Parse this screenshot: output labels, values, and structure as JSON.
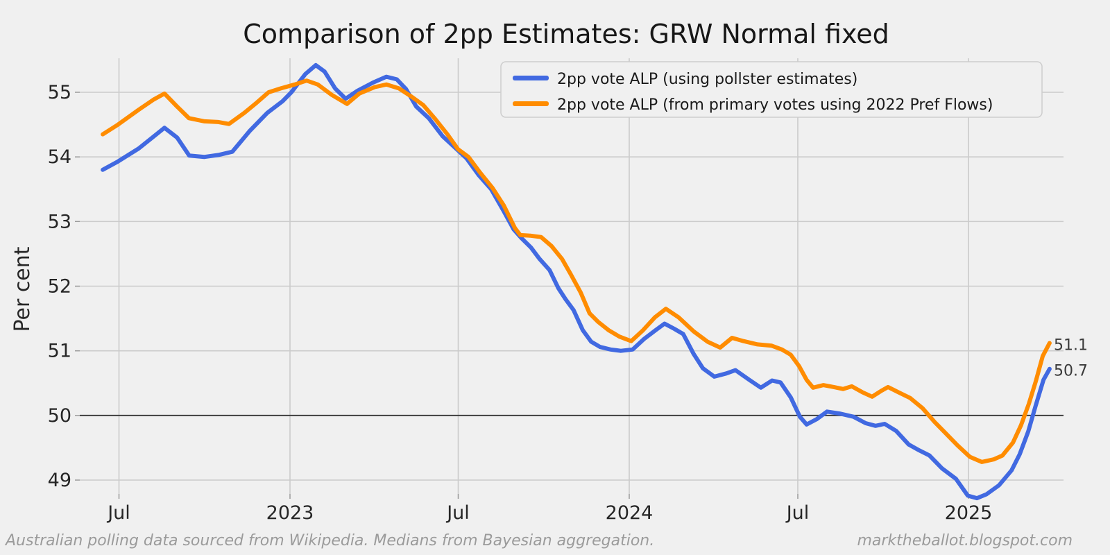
{
  "title": "Comparison of 2pp Estimates: GRW Normal fixed",
  "y_axis": {
    "label": "Per cent",
    "ticks": [
      49,
      50,
      51,
      52,
      53,
      54,
      55
    ]
  },
  "x_axis": {
    "ticks": [
      {
        "label": "Jul",
        "year": 2022.496
      },
      {
        "label": "2023",
        "year": 2023.0
      },
      {
        "label": "Jul",
        "year": 2023.496
      },
      {
        "label": "2024",
        "year": 2024.0
      },
      {
        "label": "Jul",
        "year": 2024.497
      },
      {
        "label": "2025",
        "year": 2025.0
      }
    ]
  },
  "legend": {
    "items": [
      {
        "label": "2pp vote ALP (using pollster estimates)",
        "color": "#4169e1"
      },
      {
        "label": "2pp vote ALP (from primary votes using 2022 Pref Flows)",
        "color": "#ff8c00"
      }
    ]
  },
  "annotations": [
    {
      "text": "51.1",
      "value": 51.1
    },
    {
      "text": "50.7",
      "value": 50.7
    }
  ],
  "footer": {
    "left": "Australian polling data sourced from Wikipedia. Medians from Bayesian aggregation.",
    "right": "marktheballot.blogspot.com"
  },
  "colors": {
    "background": "#f0f0f0",
    "gridline": "#cbcbcb",
    "reference_line": "#3f3f3f",
    "blue_series": "#4169e1",
    "orange_series": "#ff8c00"
  },
  "chart_data": {
    "type": "line",
    "title": "Comparison of 2pp Estimates: GRW Normal fixed",
    "xlabel": "",
    "ylabel": "Per cent",
    "xlim": [
      2022.38,
      2025.28
    ],
    "ylim": [
      48.79,
      55.53
    ],
    "grid": true,
    "legend_position": "upper right",
    "reference_line": 50,
    "end_labels": [
      51.1,
      50.7
    ],
    "series": [
      {
        "name": "2pp vote ALP (using pollster estimates)",
        "color": "#4169e1",
        "points": [
          [
            2022.448,
            53.8
          ],
          [
            2022.493,
            53.93
          ],
          [
            2022.554,
            54.13
          ],
          [
            2022.599,
            54.32
          ],
          [
            2022.63,
            54.45
          ],
          [
            2022.667,
            54.3
          ],
          [
            2022.703,
            54.02
          ],
          [
            2022.748,
            54.0
          ],
          [
            2022.789,
            54.03
          ],
          [
            2022.83,
            54.08
          ],
          [
            2022.881,
            54.4
          ],
          [
            2022.933,
            54.68
          ],
          [
            2022.978,
            54.86
          ],
          [
            2023.004,
            55.0
          ],
          [
            2023.045,
            55.28
          ],
          [
            2023.076,
            55.42
          ],
          [
            2023.102,
            55.32
          ],
          [
            2023.133,
            55.06
          ],
          [
            2023.164,
            54.9
          ],
          [
            2023.198,
            55.02
          ],
          [
            2023.245,
            55.15
          ],
          [
            2023.284,
            55.24
          ],
          [
            2023.315,
            55.2
          ],
          [
            2023.342,
            55.05
          ],
          [
            2023.372,
            54.78
          ],
          [
            2023.409,
            54.6
          ],
          [
            2023.45,
            54.32
          ],
          [
            2023.485,
            54.15
          ],
          [
            2023.52,
            53.98
          ],
          [
            2023.556,
            53.72
          ],
          [
            2023.593,
            53.5
          ],
          [
            2023.628,
            53.18
          ],
          [
            2023.659,
            52.88
          ],
          [
            2023.683,
            52.74
          ],
          [
            2023.71,
            52.6
          ],
          [
            2023.736,
            52.42
          ],
          [
            2023.765,
            52.25
          ],
          [
            2023.791,
            51.97
          ],
          [
            2023.812,
            51.8
          ],
          [
            2023.836,
            51.63
          ],
          [
            2023.863,
            51.32
          ],
          [
            2023.888,
            51.14
          ],
          [
            2023.914,
            51.06
          ],
          [
            2023.945,
            51.02
          ],
          [
            2023.975,
            51.0
          ],
          [
            2024.01,
            51.02
          ],
          [
            2024.043,
            51.18
          ],
          [
            2024.078,
            51.32
          ],
          [
            2024.104,
            51.42
          ],
          [
            2024.133,
            51.34
          ],
          [
            2024.159,
            51.26
          ],
          [
            2024.19,
            50.95
          ],
          [
            2024.217,
            50.73
          ],
          [
            2024.251,
            50.6
          ],
          [
            2024.286,
            50.65
          ],
          [
            2024.313,
            50.7
          ],
          [
            2024.354,
            50.55
          ],
          [
            2024.388,
            50.43
          ],
          [
            2024.421,
            50.54
          ],
          [
            2024.446,
            50.51
          ],
          [
            2024.476,
            50.28
          ],
          [
            2024.503,
            49.98
          ],
          [
            2024.523,
            49.86
          ],
          [
            2024.552,
            49.94
          ],
          [
            2024.583,
            50.06
          ],
          [
            2024.62,
            50.03
          ],
          [
            2024.661,
            49.98
          ],
          [
            2024.697,
            49.88
          ],
          [
            2024.726,
            49.84
          ],
          [
            2024.753,
            49.87
          ],
          [
            2024.787,
            49.76
          ],
          [
            2024.824,
            49.55
          ],
          [
            2024.855,
            49.46
          ],
          [
            2024.885,
            49.38
          ],
          [
            2024.922,
            49.18
          ],
          [
            2024.963,
            49.02
          ],
          [
            2024.998,
            48.76
          ],
          [
            2025.025,
            48.72
          ],
          [
            2025.053,
            48.78
          ],
          [
            2025.09,
            48.92
          ],
          [
            2025.127,
            49.15
          ],
          [
            2025.151,
            49.4
          ],
          [
            2025.176,
            49.75
          ],
          [
            2025.198,
            50.15
          ],
          [
            2025.221,
            50.55
          ],
          [
            2025.239,
            50.72
          ]
        ]
      },
      {
        "name": "2pp vote ALP (from primary votes using 2022 Pref Flows)",
        "color": "#ff8c00",
        "points": [
          [
            2022.448,
            54.35
          ],
          [
            2022.493,
            54.5
          ],
          [
            2022.554,
            54.73
          ],
          [
            2022.599,
            54.89
          ],
          [
            2022.63,
            54.98
          ],
          [
            2022.667,
            54.78
          ],
          [
            2022.702,
            54.6
          ],
          [
            2022.748,
            54.55
          ],
          [
            2022.789,
            54.54
          ],
          [
            2022.82,
            54.51
          ],
          [
            2022.865,
            54.68
          ],
          [
            2022.902,
            54.84
          ],
          [
            2022.937,
            55.0
          ],
          [
            2022.973,
            55.06
          ],
          [
            2023.014,
            55.12
          ],
          [
            2023.049,
            55.18
          ],
          [
            2023.082,
            55.12
          ],
          [
            2023.123,
            54.96
          ],
          [
            2023.168,
            54.82
          ],
          [
            2023.204,
            54.98
          ],
          [
            2023.25,
            55.08
          ],
          [
            2023.284,
            55.12
          ],
          [
            2023.321,
            55.06
          ],
          [
            2023.356,
            54.94
          ],
          [
            2023.393,
            54.8
          ],
          [
            2023.429,
            54.58
          ],
          [
            2023.464,
            54.35
          ],
          [
            2023.495,
            54.12
          ],
          [
            2023.526,
            54.0
          ],
          [
            2023.56,
            53.76
          ],
          [
            2023.597,
            53.52
          ],
          [
            2023.63,
            53.25
          ],
          [
            2023.663,
            52.9
          ],
          [
            2023.679,
            52.79
          ],
          [
            2023.71,
            52.78
          ],
          [
            2023.74,
            52.76
          ],
          [
            2023.771,
            52.62
          ],
          [
            2023.802,
            52.42
          ],
          [
            2023.828,
            52.18
          ],
          [
            2023.857,
            51.9
          ],
          [
            2023.883,
            51.58
          ],
          [
            2023.908,
            51.45
          ],
          [
            2023.939,
            51.32
          ],
          [
            2023.971,
            51.22
          ],
          [
            2024.006,
            51.15
          ],
          [
            2024.041,
            51.32
          ],
          [
            2024.076,
            51.52
          ],
          [
            2024.108,
            51.65
          ],
          [
            2024.145,
            51.52
          ],
          [
            2024.19,
            51.3
          ],
          [
            2024.231,
            51.14
          ],
          [
            2024.268,
            51.05
          ],
          [
            2024.303,
            51.2
          ],
          [
            2024.337,
            51.15
          ],
          [
            2024.378,
            51.1
          ],
          [
            2024.419,
            51.08
          ],
          [
            2024.45,
            51.02
          ],
          [
            2024.476,
            50.94
          ],
          [
            2024.501,
            50.76
          ],
          [
            2024.523,
            50.55
          ],
          [
            2024.542,
            50.43
          ],
          [
            2024.572,
            50.47
          ],
          [
            2024.603,
            50.44
          ],
          [
            2024.63,
            50.41
          ],
          [
            2024.656,
            50.45
          ],
          [
            2024.687,
            50.36
          ],
          [
            2024.716,
            50.29
          ],
          [
            2024.743,
            50.38
          ],
          [
            2024.763,
            50.44
          ],
          [
            2024.793,
            50.36
          ],
          [
            2024.828,
            50.27
          ],
          [
            2024.865,
            50.11
          ],
          [
            2024.9,
            49.9
          ],
          [
            2024.93,
            49.74
          ],
          [
            2024.967,
            49.54
          ],
          [
            2025.004,
            49.36
          ],
          [
            2025.039,
            49.28
          ],
          [
            2025.074,
            49.32
          ],
          [
            2025.1,
            49.38
          ],
          [
            2025.131,
            49.58
          ],
          [
            2025.155,
            49.85
          ],
          [
            2025.178,
            50.18
          ],
          [
            2025.198,
            50.52
          ],
          [
            2025.219,
            50.92
          ],
          [
            2025.239,
            51.12
          ]
        ]
      }
    ]
  }
}
